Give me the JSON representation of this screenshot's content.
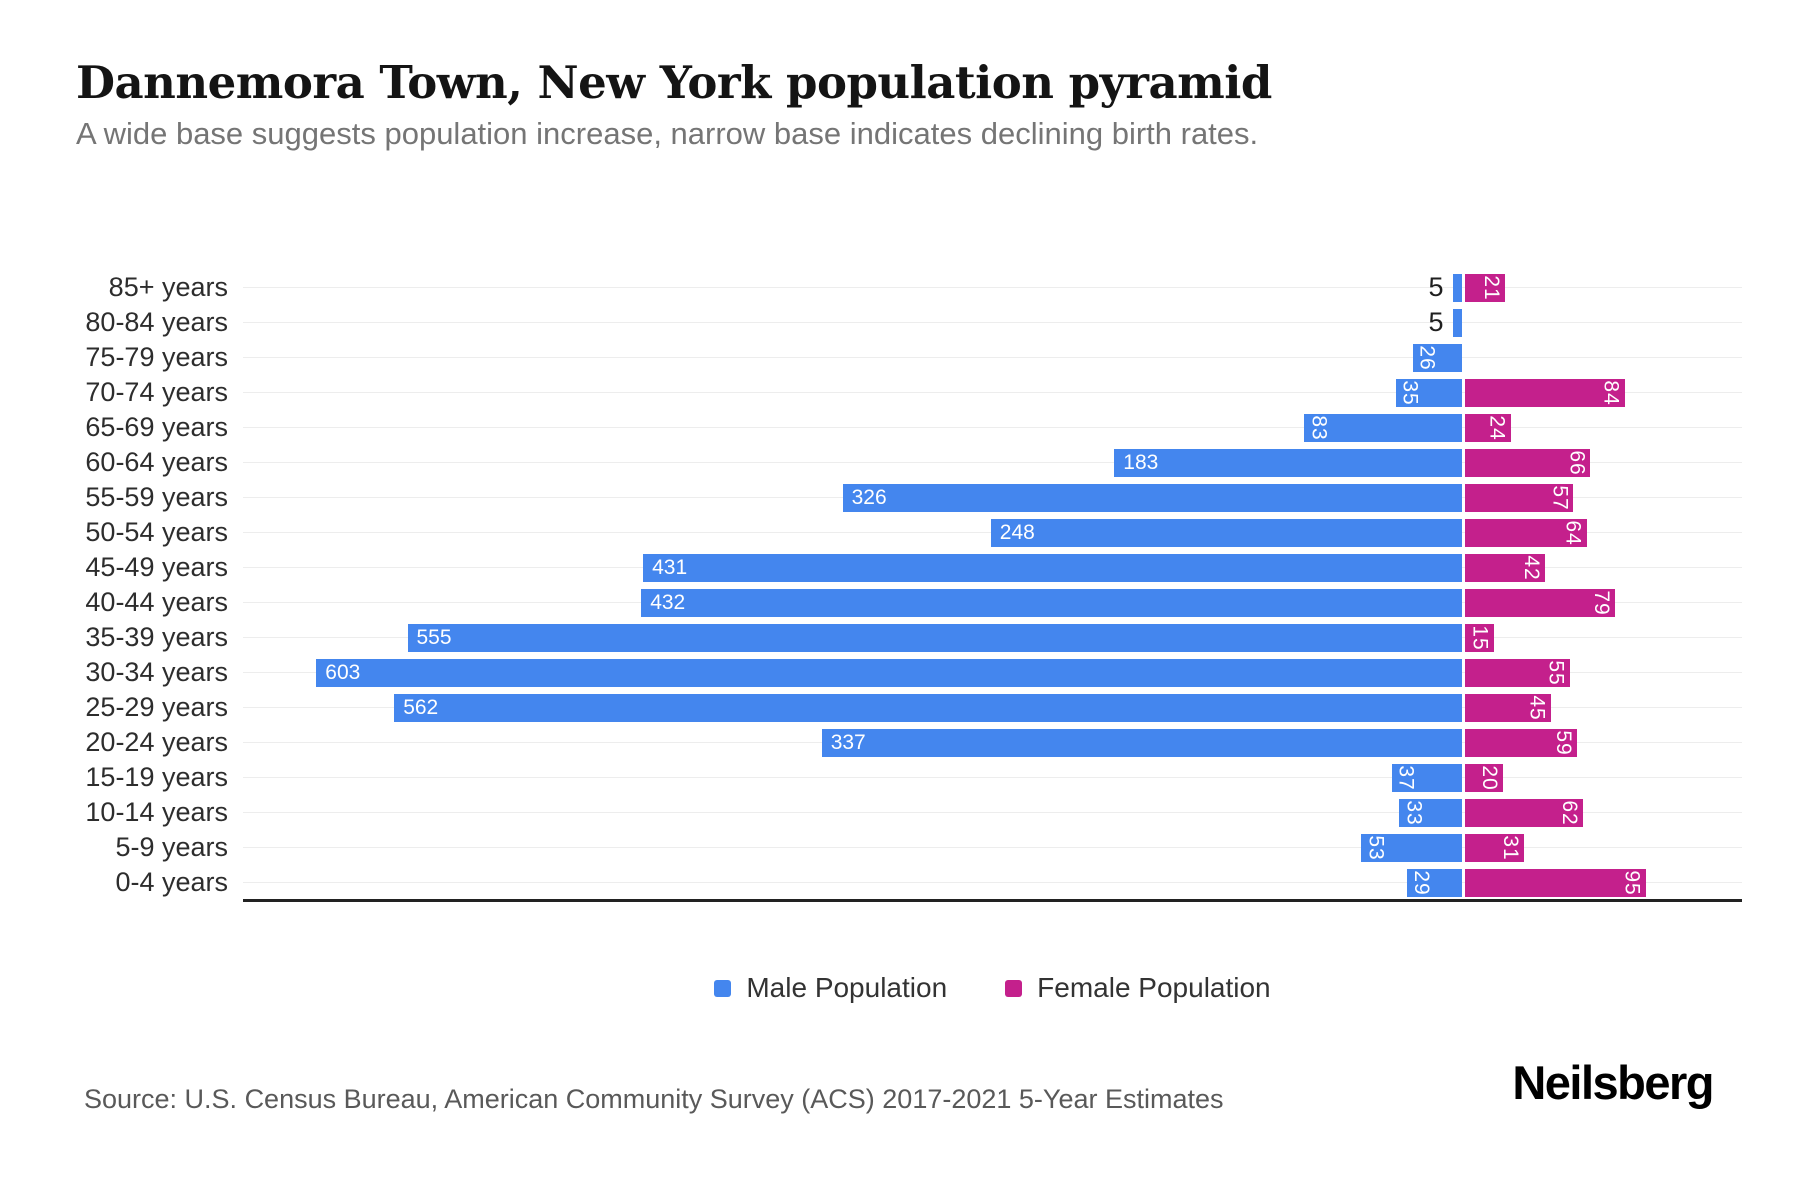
{
  "title": "Dannemora Town, New York population pyramid",
  "subtitle": "A wide base suggests population increase, narrow base indicates declining birth rates.",
  "source": "Source: U.S. Census Bureau, American Community Survey (ACS) 2017-2021 5-Year Estimates",
  "brand": "Neilsberg",
  "colors": {
    "male": "#4486ee",
    "female": "#c4208c",
    "gridline": "#ededed",
    "axis": "#222222"
  },
  "legend": {
    "items": [
      {
        "label": "Male Population",
        "color": "#4486ee"
      },
      {
        "label": "Female Population",
        "color": "#c4208c"
      }
    ]
  },
  "chart_data": {
    "type": "bar",
    "variant": "population-pyramid",
    "title": "Dannemora Town, New York population pyramid",
    "categories": [
      "85+ years",
      "80-84 years",
      "75-79 years",
      "70-74 years",
      "65-69 years",
      "60-64 years",
      "55-59 years",
      "50-54 years",
      "45-49 years",
      "40-44 years",
      "35-39 years",
      "30-34 years",
      "25-29 years",
      "20-24 years",
      "15-19 years",
      "10-14 years",
      "5-9 years",
      "0-4 years"
    ],
    "series": [
      {
        "name": "Male Population",
        "side": "left",
        "color": "#4486ee",
        "values": [
          5,
          5,
          26,
          35,
          83,
          183,
          326,
          248,
          431,
          432,
          555,
          603,
          562,
          337,
          37,
          33,
          53,
          29
        ]
      },
      {
        "name": "Female Population",
        "side": "right",
        "color": "#c4208c",
        "values": [
          21,
          0,
          0,
          84,
          24,
          66,
          57,
          64,
          42,
          79,
          15,
          55,
          45,
          59,
          20,
          62,
          31,
          95
        ]
      }
    ],
    "value_labels": true,
    "grid": "horizontal-row-center-lines",
    "legend_position": "bottom-center",
    "axis_extents": {
      "left_max": 643,
      "right_max": 147
    }
  }
}
